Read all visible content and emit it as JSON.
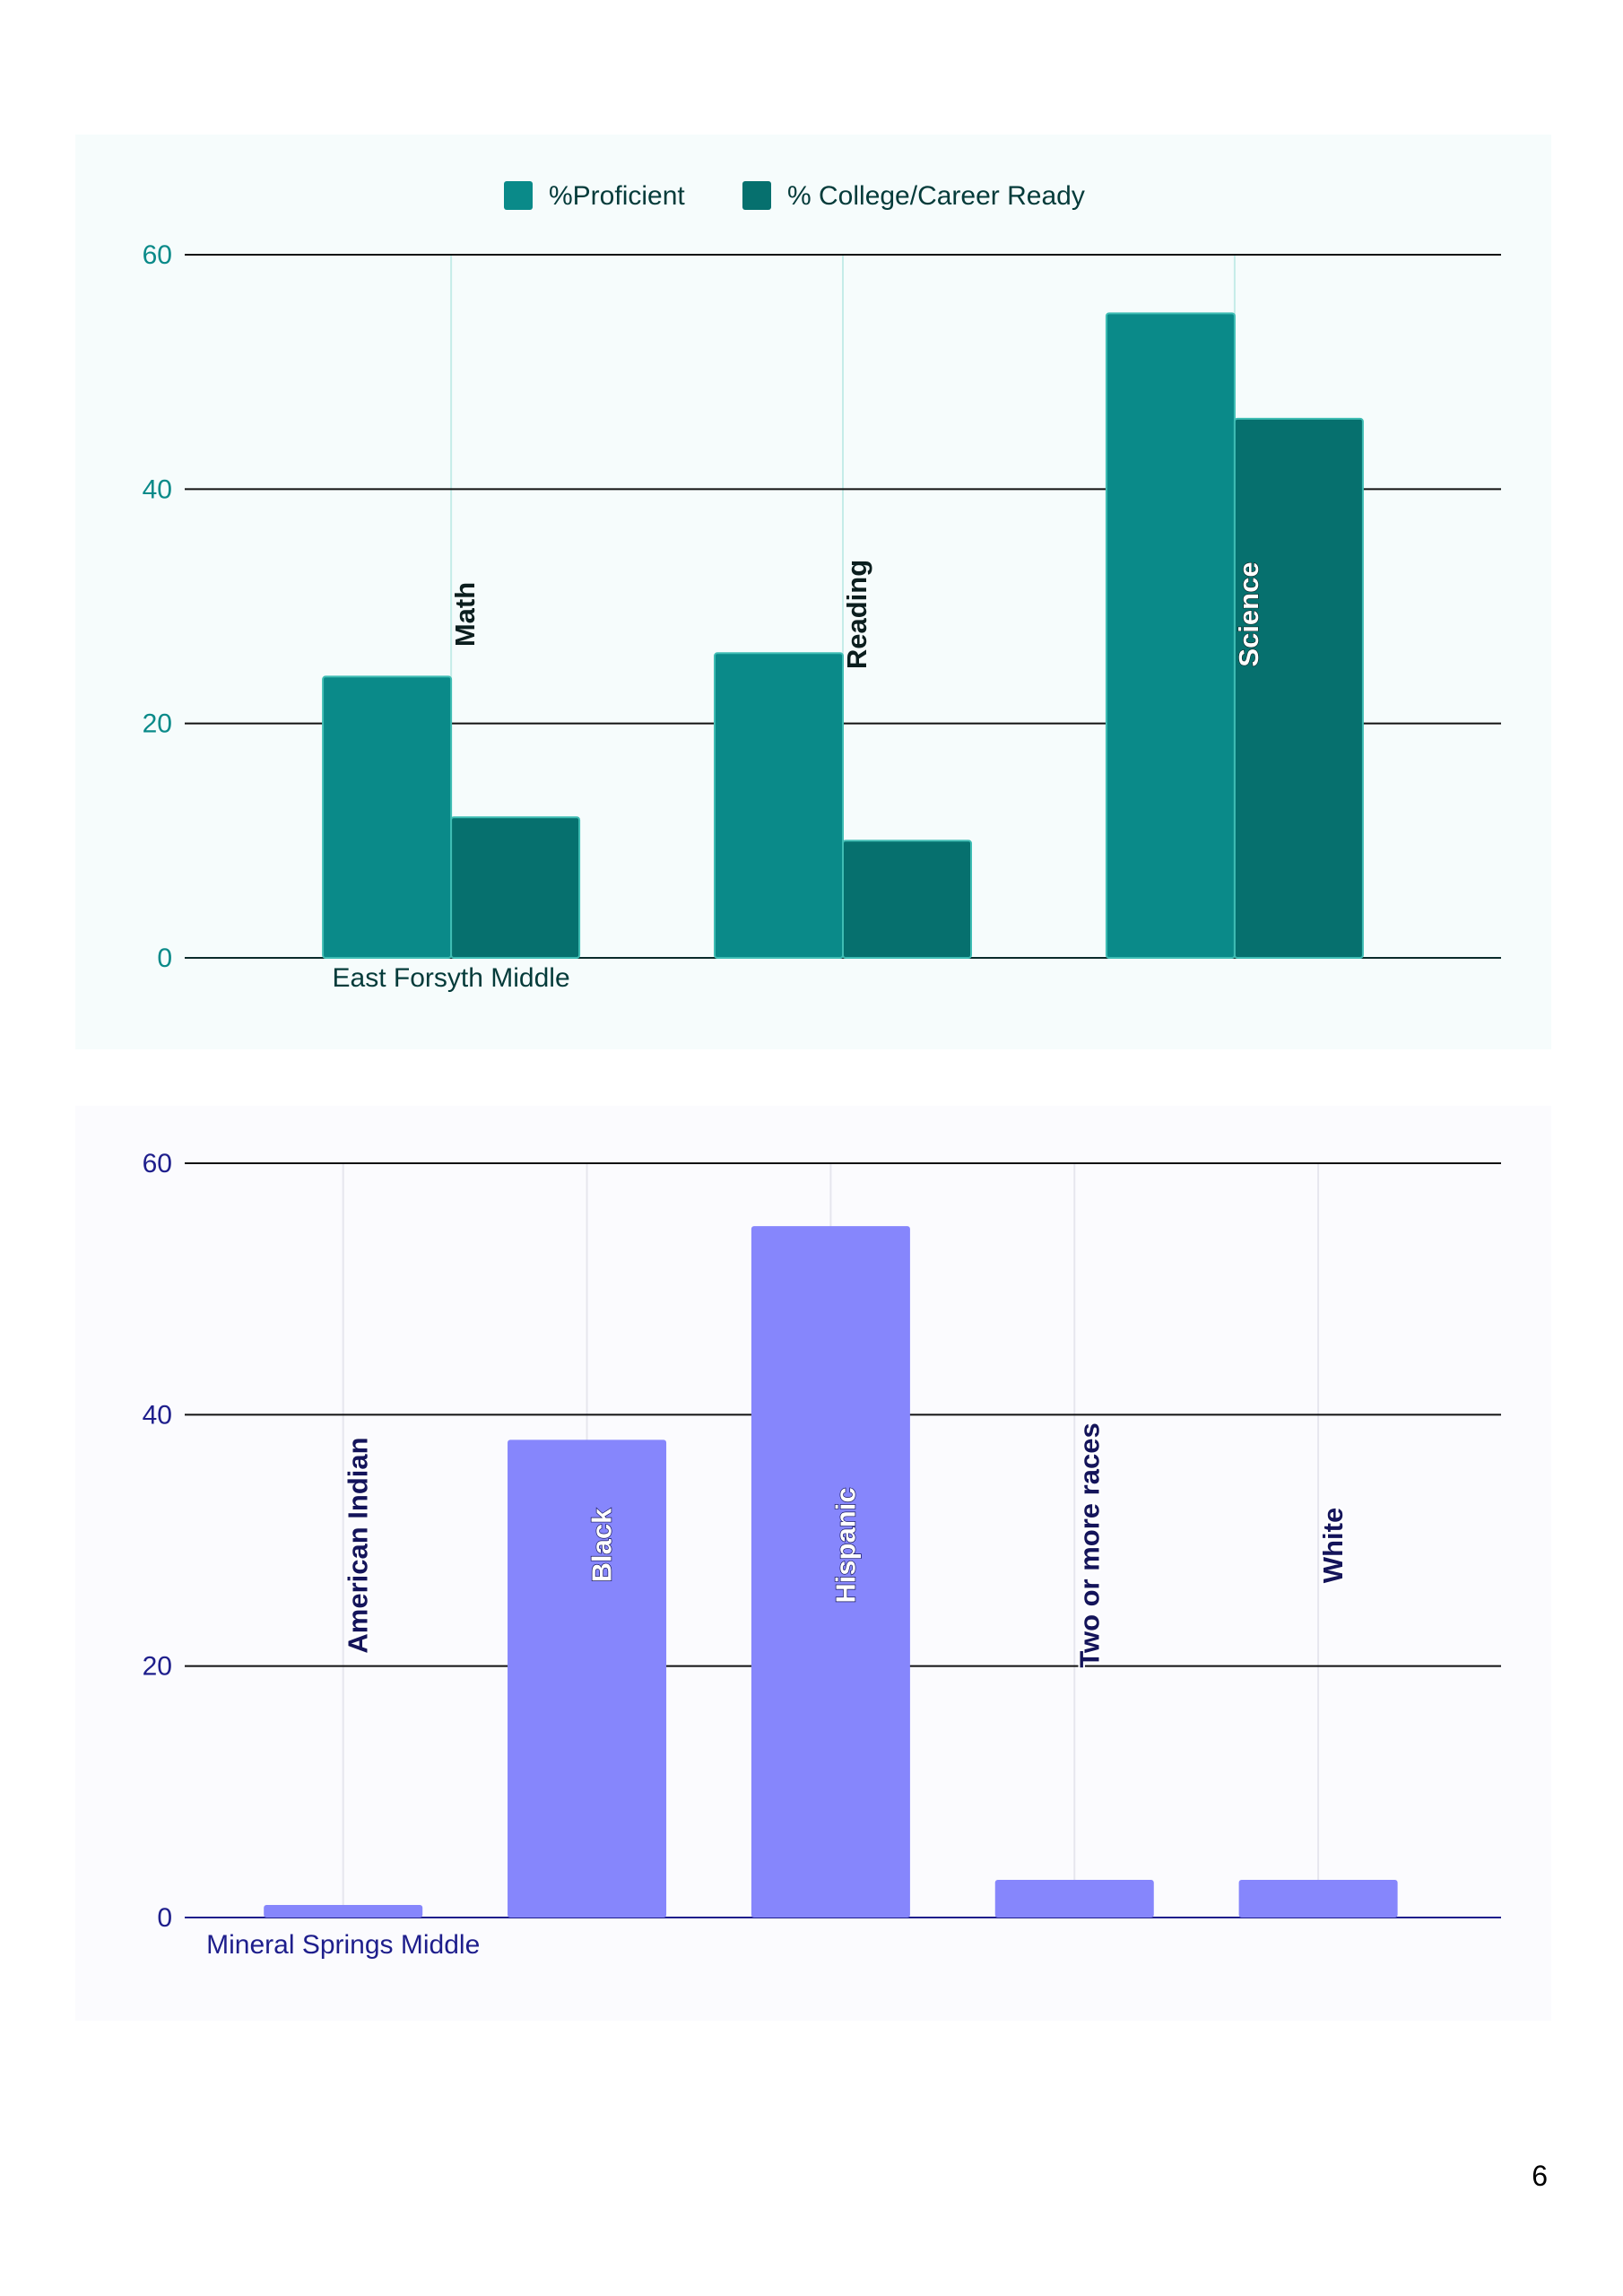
{
  "page_number": "6",
  "chart_data": [
    {
      "type": "bar",
      "categories": [
        "Math",
        "Reading",
        "Science"
      ],
      "series": [
        {
          "name": "%Proficient",
          "values": [
            24,
            26,
            55
          ],
          "color": "#0a8a89"
        },
        {
          "name": "% College/Career Ready",
          "values": [
            12,
            10,
            46
          ],
          "color": "#06706e"
        }
      ],
      "x_tick_label": "East Forsyth Middle",
      "y_ticks": [
        0,
        20,
        40,
        60
      ],
      "ylim": [
        0,
        60
      ],
      "grid": true,
      "legend": "top-center",
      "tick_color": "#0a8a89",
      "x_label_color": "#043b3a",
      "background": "#f6fcfc"
    },
    {
      "type": "bar",
      "categories": [
        "American Indian",
        "Black",
        "Hispanic",
        "Two or more races",
        "White"
      ],
      "series": [
        {
          "values": [
            1,
            38,
            55,
            3,
            3
          ],
          "color": "#8686fc"
        }
      ],
      "x_tick_label": "Mineral Springs Middle",
      "y_ticks": [
        0,
        20,
        40,
        60
      ],
      "ylim": [
        0,
        60
      ],
      "grid": true,
      "legend": "none",
      "tick_color": "#1e1e8c",
      "x_label_color": "#1e1e8c",
      "background": "#fbfbfe"
    }
  ]
}
